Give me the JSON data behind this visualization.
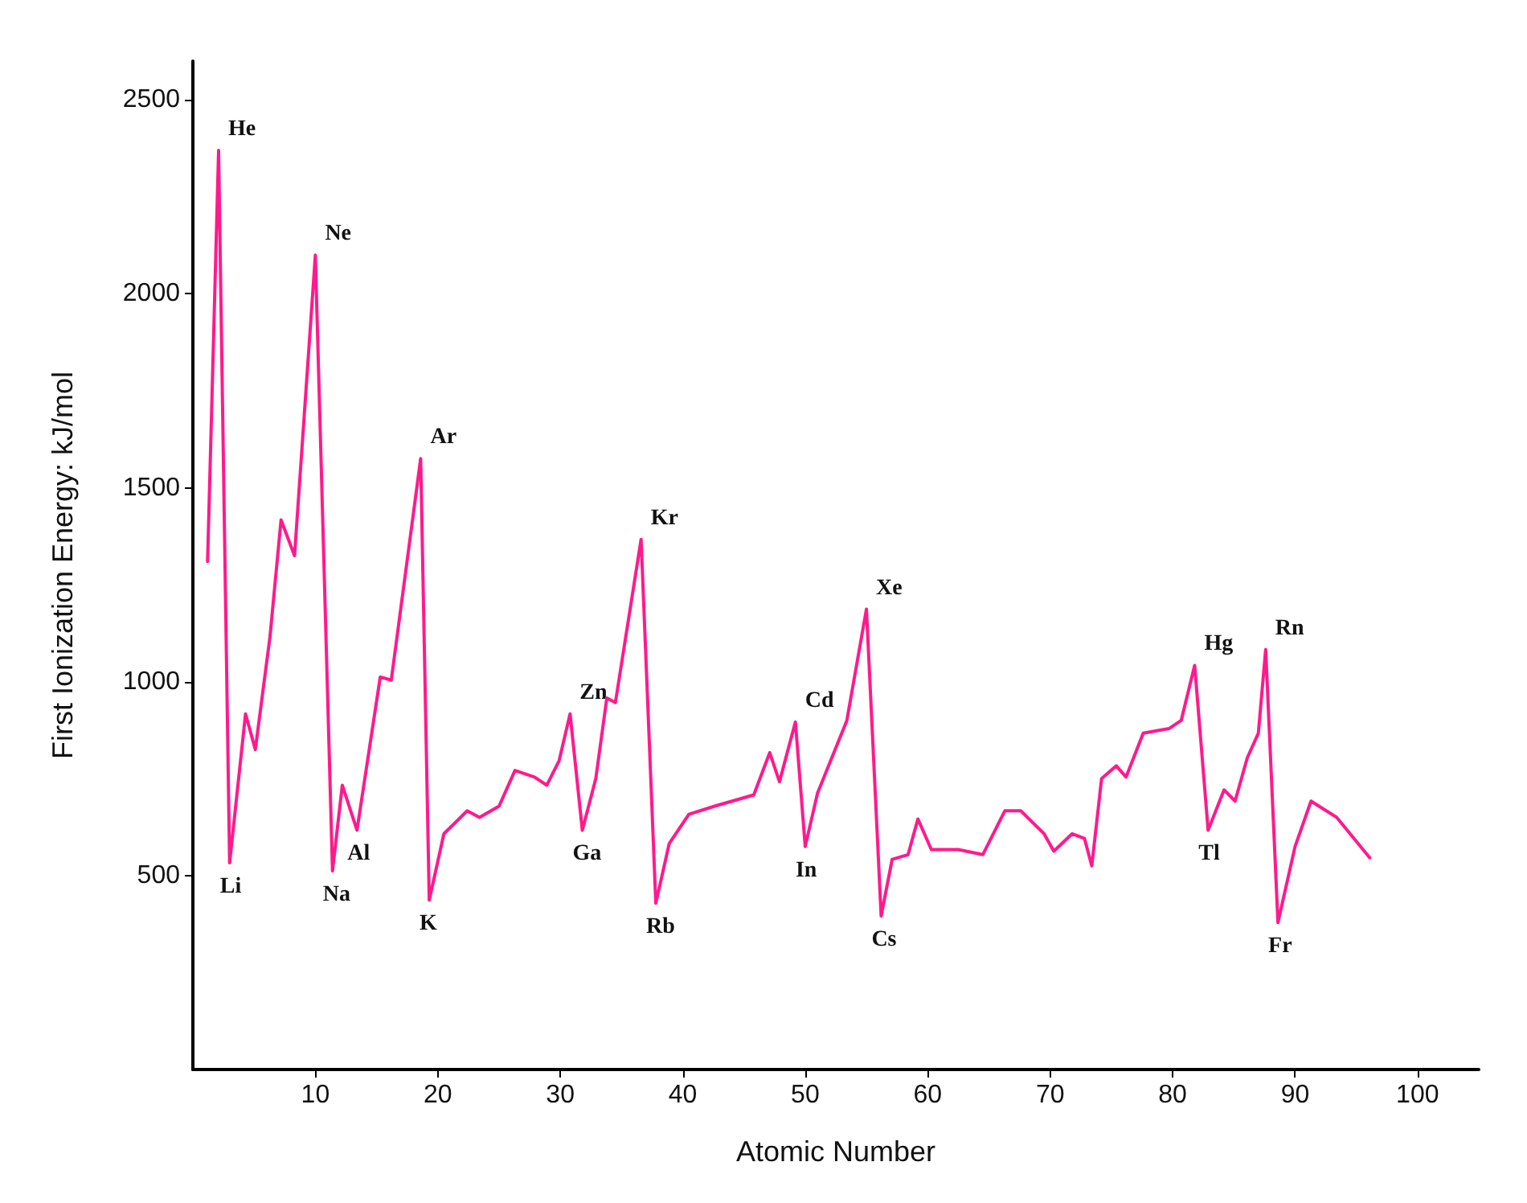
{
  "chart_data": {
    "type": "line",
    "xlabel": "Atomic Number",
    "ylabel": "First Ionization Energy: kJ/mol",
    "x": [
      1.2,
      2.1,
      3,
      4.3,
      5.1,
      6.3,
      7.2,
      8.3,
      10,
      11.4,
      12.2,
      13.4,
      15.3,
      16.2,
      18.6,
      19.3,
      20.5,
      22.4,
      23.4,
      25,
      26.3,
      27.9,
      28.9,
      29.9,
      30.8,
      31.8,
      32.9,
      33.8,
      34.5,
      36.6,
      37.8,
      38.9,
      40.5,
      42.6,
      45.8,
      47.1,
      47.9,
      49.2,
      50,
      51,
      53.4,
      55,
      56.2,
      57.1,
      58.4,
      59.2,
      60.3,
      62.5,
      64.5,
      66.3,
      67.6,
      69.5,
      70.3,
      71.8,
      72.8,
      73.4,
      74.2,
      75.4,
      76.2,
      77.6,
      79.7,
      80.7,
      81.8,
      82.9,
      84.2,
      85.1,
      86.1,
      87,
      87.6,
      88.6,
      90,
      91.3,
      93.4,
      96.1
    ],
    "series": [
      {
        "color": "#ff1a8c",
        "values": [
          1310,
          2370,
          533,
          917,
          825,
          1117,
          1417,
          1325,
          2100,
          512,
          733,
          617,
          1012,
          1004,
          1575,
          437,
          608,
          667,
          650,
          679,
          771,
          754,
          733,
          796,
          917,
          617,
          750,
          958,
          946,
          1367,
          429,
          583,
          658,
          679,
          708,
          817,
          742,
          896,
          575,
          712,
          900,
          1187,
          396,
          542,
          554,
          646,
          567,
          567,
          554,
          667,
          667,
          608,
          563,
          608,
          596,
          525,
          750,
          783,
          754,
          867,
          879,
          900,
          1042,
          617,
          721,
          692,
          804,
          867,
          1083,
          379,
          575,
          692,
          650,
          546
        ]
      }
    ],
    "xlim": [
      0,
      105
    ],
    "xticks": [
      10,
      20,
      30,
      40,
      50,
      60,
      70,
      80,
      90,
      100
    ],
    "ylim": [
      0,
      2600
    ],
    "yticks": [
      500,
      1000,
      1500,
      2000,
      2500
    ],
    "grid": false,
    "marker": "none",
    "line_style": "solid",
    "annotations": [
      {
        "text": "He",
        "x": 2.1,
        "y": 2370
      },
      {
        "text": "Li",
        "x": 3,
        "y": 533
      },
      {
        "text": "Ne",
        "x": 10,
        "y": 2100
      },
      {
        "text": "Na",
        "x": 11.4,
        "y": 512
      },
      {
        "text": "Al",
        "x": 13.4,
        "y": 617
      },
      {
        "text": "Ar",
        "x": 18.6,
        "y": 1575
      },
      {
        "text": "K",
        "x": 19.3,
        "y": 437
      },
      {
        "text": "Zn",
        "x": 30.8,
        "y": 917
      },
      {
        "text": "Ga",
        "x": 31.8,
        "y": 617
      },
      {
        "text": "Kr",
        "x": 36.6,
        "y": 1367
      },
      {
        "text": "Rb",
        "x": 37.8,
        "y": 429
      },
      {
        "text": "Cd",
        "x": 49.2,
        "y": 896
      },
      {
        "text": "In",
        "x": 50,
        "y": 575
      },
      {
        "text": "Xe",
        "x": 55,
        "y": 1187
      },
      {
        "text": "Cs",
        "x": 56.2,
        "y": 396
      },
      {
        "text": "Hg",
        "x": 81.8,
        "y": 1042
      },
      {
        "text": "Tl",
        "x": 82.9,
        "y": 617
      },
      {
        "text": "Rn",
        "x": 87.6,
        "y": 1083
      },
      {
        "text": "Fr",
        "x": 88.6,
        "y": 379
      }
    ]
  }
}
